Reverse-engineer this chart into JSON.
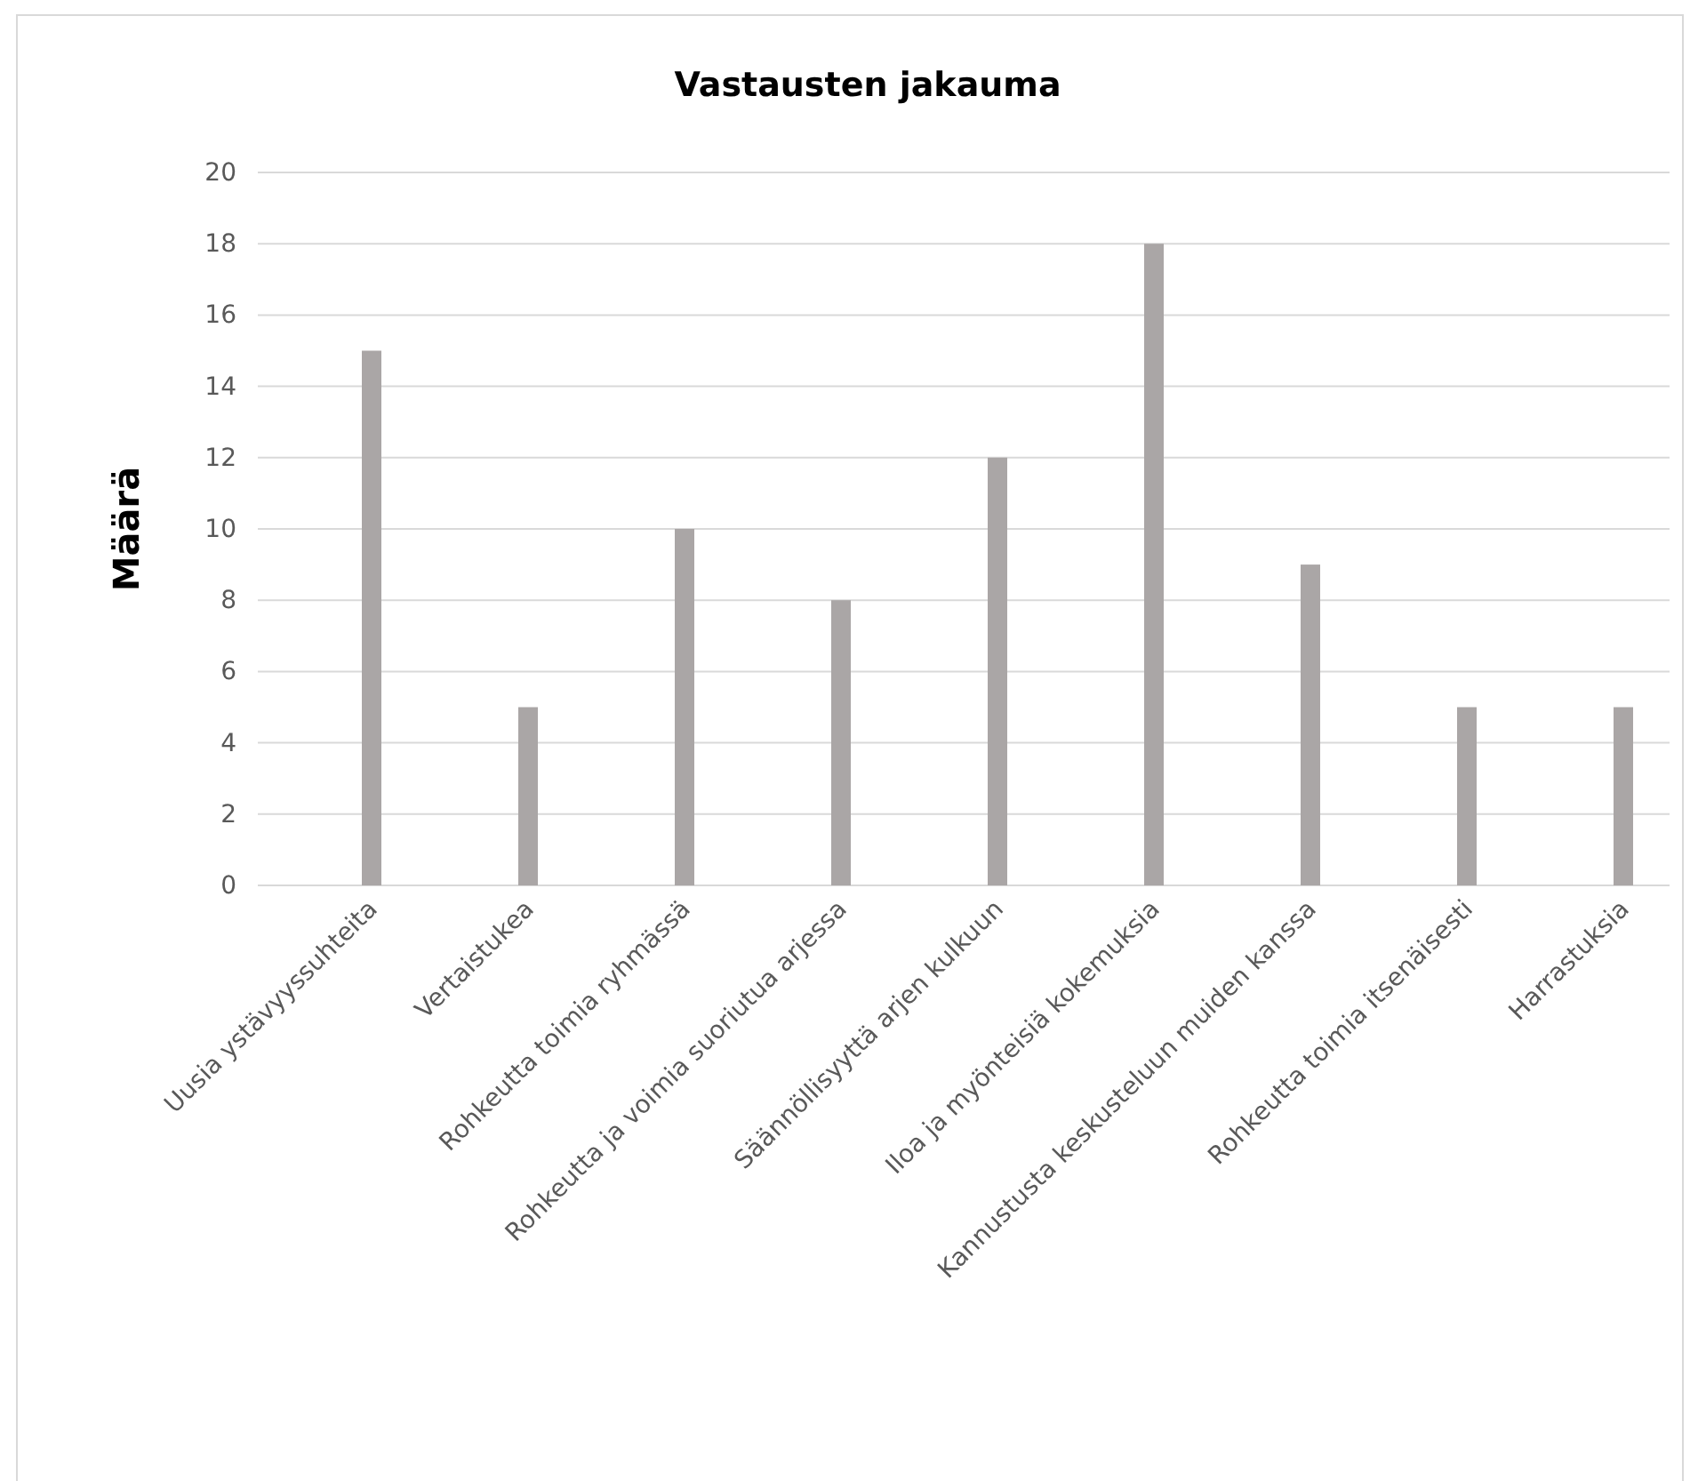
{
  "chart_data": {
    "type": "bar",
    "title": "Vastausten jakauma",
    "ylabel": "Määrä",
    "categories": [
      "Uusia ystävyyssuhteita",
      "Vertaistukea",
      "Rohkeutta toimia ryhmässä",
      "Rohkeutta ja voimia suoriutua arjessa",
      "Säännöllisyyttä arjen kulkuun",
      "Iloa ja myönteisiä kokemuksia",
      "Kannustusta keskusteluun muiden kanssa",
      "Rohkeutta toimia itsenäisesti",
      "Harrastuksia"
    ],
    "values": [
      15,
      5,
      10,
      8,
      12,
      18,
      9,
      5,
      5
    ],
    "color": "#aaa6a6",
    "ylim": [
      0,
      20
    ],
    "yticks": [
      0,
      2,
      4,
      6,
      8,
      10,
      12,
      14,
      16,
      18,
      20
    ],
    "grid": "y"
  }
}
